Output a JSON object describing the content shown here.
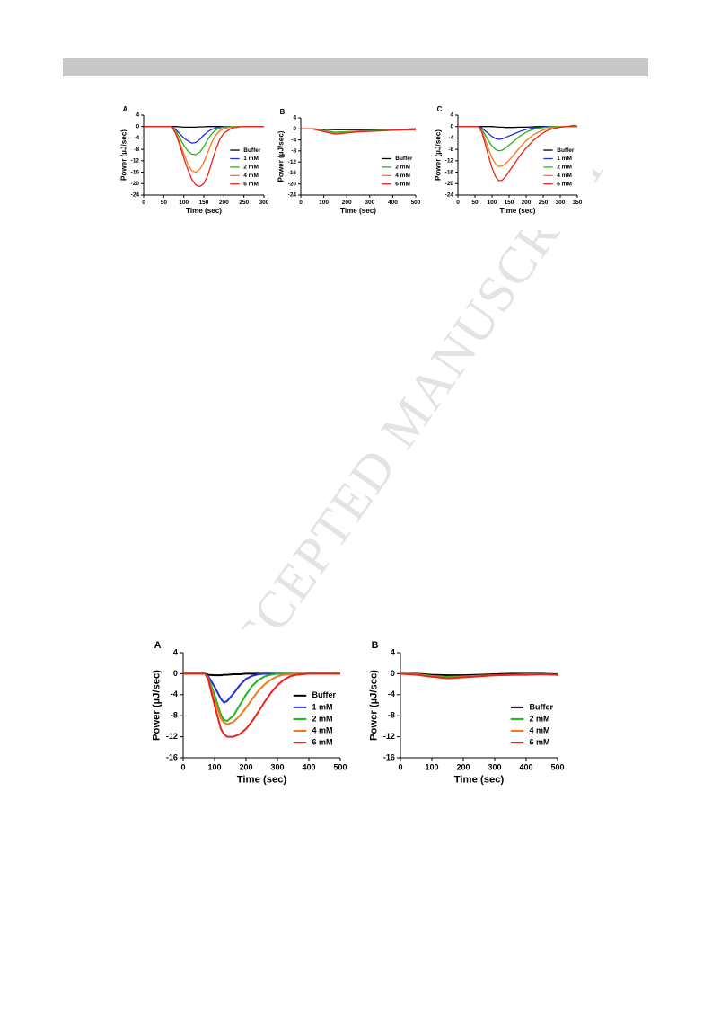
{
  "watermark": "ACCEPTED MANUSCRIPT",
  "chart_data": [
    {
      "type": "line",
      "panel": "A",
      "ylabel": "Power (µJ/sec)",
      "xlabel": "Time (sec)",
      "legend": "lower right",
      "xlim": [
        0,
        300
      ],
      "ylim": [
        -24,
        4
      ],
      "xticks": [
        0,
        50,
        100,
        150,
        200,
        250,
        300
      ],
      "yticks": [
        4,
        0,
        -4,
        -8,
        -12,
        -16,
        -20,
        -24
      ],
      "x": [
        0,
        60,
        70,
        80,
        90,
        100,
        110,
        120,
        130,
        140,
        150,
        160,
        170,
        180,
        190,
        200,
        220,
        240,
        260,
        280,
        300
      ],
      "series": [
        {
          "name": "Buffer",
          "color": "#000000",
          "values": [
            0,
            0,
            0,
            0,
            -0.1,
            -0.2,
            -0.2,
            -0.2,
            -0.2,
            -0.1,
            -0.1,
            0,
            0,
            0,
            0,
            0,
            0,
            0,
            0,
            0,
            0
          ]
        },
        {
          "name": "1 mM",
          "color": "#1f2fd6",
          "values": [
            0,
            0,
            0,
            -1,
            -2.5,
            -4,
            -5,
            -5.8,
            -5.6,
            -4.5,
            -3,
            -1.8,
            -1,
            -0.5,
            -0.2,
            0,
            0,
            0,
            0,
            0,
            0
          ]
        },
        {
          "name": "2 mM",
          "color": "#22b522",
          "values": [
            0,
            0,
            0,
            -1.5,
            -4,
            -6.5,
            -8.5,
            -9.7,
            -9.8,
            -9,
            -7,
            -4.5,
            -2.5,
            -1.2,
            -0.5,
            -0.2,
            0,
            0,
            0,
            0,
            0
          ]
        },
        {
          "name": "4 mM",
          "color": "#f27a1c",
          "values": [
            0,
            0,
            0,
            -2,
            -5.5,
            -9.5,
            -13,
            -15.5,
            -16,
            -15,
            -12.5,
            -9,
            -5.5,
            -3,
            -1.5,
            -0.7,
            -0.1,
            0,
            0,
            0,
            0
          ]
        },
        {
          "name": "6 mM",
          "color": "#e8231c",
          "values": [
            0,
            0,
            0,
            -2.5,
            -6.5,
            -11,
            -15,
            -18.5,
            -20.5,
            -21,
            -20,
            -17,
            -12.5,
            -8,
            -4.5,
            -2.3,
            -0.5,
            -0.1,
            0,
            0,
            0
          ]
        }
      ]
    },
    {
      "type": "line",
      "panel": "B",
      "ylabel": "Power (µJ/sec)",
      "xlabel": "Time (sec)",
      "legend": "lower right",
      "xlim": [
        0,
        500
      ],
      "ylim": [
        -24,
        4
      ],
      "xticks": [
        0,
        100,
        200,
        300,
        400,
        500
      ],
      "yticks": [
        4,
        0,
        -4,
        -8,
        -12,
        -16,
        -20,
        -24
      ],
      "x": [
        0,
        50,
        100,
        150,
        200,
        250,
        300,
        350,
        400,
        450,
        500
      ],
      "series": [
        {
          "name": "Buffer",
          "color": "#000000",
          "values": [
            0,
            0,
            -0.2,
            -0.3,
            -0.3,
            -0.3,
            -0.3,
            -0.2,
            -0.2,
            -0.1,
            0
          ]
        },
        {
          "name": "2 mM",
          "color": "#22b522",
          "values": [
            0,
            0,
            -0.6,
            -1.2,
            -1,
            -0.8,
            -0.6,
            -0.5,
            -0.4,
            -0.3,
            -0.2
          ]
        },
        {
          "name": "4 mM",
          "color": "#f27a1c",
          "values": [
            0,
            0,
            -0.8,
            -1.6,
            -1.3,
            -1,
            -0.8,
            -0.6,
            -0.5,
            -0.3,
            -0.2
          ]
        },
        {
          "name": "6 mM",
          "color": "#e8231c",
          "values": [
            0,
            0,
            -1,
            -1.9,
            -1.5,
            -1.1,
            -0.9,
            -0.7,
            -0.5,
            -0.4,
            -0.3
          ]
        }
      ]
    },
    {
      "type": "line",
      "panel": "C",
      "ylabel": "Power (µJ/sec)",
      "xlabel": "Time (sec)",
      "legend": "lower right",
      "xlim": [
        0,
        350
      ],
      "ylim": [
        -24,
        4
      ],
      "xticks": [
        0,
        50,
        100,
        150,
        200,
        250,
        300,
        350
      ],
      "yticks": [
        4,
        0,
        -4,
        -8,
        -12,
        -16,
        -20,
        -24
      ],
      "x": [
        0,
        50,
        60,
        70,
        80,
        90,
        100,
        110,
        120,
        130,
        140,
        160,
        180,
        200,
        220,
        240,
        260,
        280,
        300,
        320,
        340,
        350
      ],
      "series": [
        {
          "name": "Buffer",
          "color": "#000000",
          "values": [
            0,
            0,
            0,
            0,
            0,
            0,
            0,
            -0.1,
            -0.2,
            -0.2,
            -0.3,
            -0.3,
            -0.2,
            -0.2,
            -0.1,
            0,
            0,
            0,
            0,
            0,
            0,
            0
          ]
        },
        {
          "name": "1 mM",
          "color": "#1f2fd6",
          "values": [
            0,
            0,
            0,
            -0.5,
            -1.5,
            -2.5,
            -3.5,
            -4.2,
            -4.5,
            -4.3,
            -3.8,
            -2.8,
            -1.8,
            -1,
            -0.5,
            -0.2,
            0,
            0,
            0,
            0,
            0,
            0
          ]
        },
        {
          "name": "2 mM",
          "color": "#22b522",
          "values": [
            0,
            0,
            0,
            -1,
            -3,
            -5,
            -6.8,
            -8,
            -8.5,
            -8.3,
            -7.5,
            -5.5,
            -3.5,
            -2,
            -1,
            -0.5,
            -0.2,
            0,
            0,
            0,
            0,
            0
          ]
        },
        {
          "name": "4 mM",
          "color": "#f27a1c",
          "values": [
            0,
            0,
            0,
            -1.5,
            -4.5,
            -8,
            -11,
            -13,
            -14,
            -13.8,
            -13,
            -10.5,
            -7.5,
            -5,
            -3,
            -1.7,
            -0.8,
            -0.3,
            0,
            0,
            0.5,
            0.2
          ]
        },
        {
          "name": "6 mM",
          "color": "#e8231c",
          "values": [
            0,
            0,
            0,
            -2,
            -6,
            -10.5,
            -14.5,
            -17.5,
            -19,
            -18.8,
            -17.5,
            -14,
            -10.5,
            -7.5,
            -5,
            -3,
            -1.5,
            -0.7,
            -0.2,
            0,
            0.3,
            0
          ]
        }
      ]
    },
    {
      "type": "line",
      "panel": "A",
      "ylabel": "Power (µJ/sec)",
      "xlabel": "Time (sec)",
      "legend": "lower right",
      "xlim": [
        0,
        500
      ],
      "ylim": [
        -16,
        4
      ],
      "xticks": [
        0,
        100,
        200,
        300,
        400,
        500
      ],
      "yticks": [
        4,
        0,
        -4,
        -8,
        -12,
        -16
      ],
      "x": [
        0,
        50,
        70,
        80,
        100,
        120,
        130,
        140,
        160,
        180,
        200,
        220,
        240,
        260,
        280,
        300,
        320,
        340,
        360,
        400,
        450,
        500
      ],
      "series": [
        {
          "name": "Buffer",
          "color": "#000000",
          "values": [
            0,
            0,
            0,
            -0.2,
            -0.3,
            -0.3,
            -0.2,
            -0.2,
            -0.1,
            -0.1,
            0,
            0,
            0,
            0,
            0,
            0,
            0,
            0,
            0,
            0,
            0,
            0
          ]
        },
        {
          "name": "1 mM",
          "color": "#1f2fd6",
          "values": [
            0,
            0,
            0,
            -0.5,
            -2.5,
            -4.8,
            -5.5,
            -5.2,
            -3.8,
            -2.2,
            -1,
            -0.4,
            -0.1,
            0,
            0,
            0,
            0,
            0,
            0,
            0,
            0,
            0
          ]
        },
        {
          "name": "2 mM",
          "color": "#22b522",
          "values": [
            0,
            0,
            0,
            -0.8,
            -4,
            -7.8,
            -8.8,
            -9,
            -8,
            -6,
            -4,
            -2.3,
            -1.2,
            -0.5,
            -0.2,
            0,
            0,
            0,
            0,
            0,
            0,
            0
          ]
        },
        {
          "name": "4 mM",
          "color": "#f27a1c",
          "values": [
            0,
            0,
            0,
            -1,
            -5,
            -8.5,
            -9.3,
            -9.6,
            -9.2,
            -8,
            -6.5,
            -4.8,
            -3.2,
            -2,
            -1.1,
            -0.5,
            -0.2,
            -0.1,
            0,
            0,
            0,
            0
          ]
        },
        {
          "name": "6 mM",
          "color": "#e8231c",
          "values": [
            0,
            0,
            0,
            -1.2,
            -6,
            -10.5,
            -11.5,
            -12,
            -12,
            -11.5,
            -10.5,
            -9,
            -7.2,
            -5.3,
            -3.6,
            -2.2,
            -1.2,
            -0.5,
            -0.2,
            0,
            0,
            0
          ]
        }
      ]
    },
    {
      "type": "line",
      "panel": "B",
      "ylabel": "Power (µJ/sec)",
      "xlabel": "Time (sec)",
      "legend": "lower right",
      "xlim": [
        0,
        500
      ],
      "ylim": [
        -16,
        4
      ],
      "xticks": [
        0,
        100,
        200,
        300,
        400,
        500
      ],
      "yticks": [
        4,
        0,
        -4,
        -8,
        -12,
        -16
      ],
      "x": [
        0,
        50,
        100,
        150,
        200,
        250,
        300,
        350,
        400,
        450,
        500
      ],
      "series": [
        {
          "name": "Buffer",
          "color": "#000000",
          "values": [
            0,
            0,
            -0.2,
            -0.3,
            -0.3,
            -0.2,
            -0.1,
            0,
            0,
            0,
            -0.1
          ]
        },
        {
          "name": "2 mM",
          "color": "#22b522",
          "values": [
            0,
            -0.1,
            -0.4,
            -0.6,
            -0.5,
            -0.4,
            -0.3,
            -0.2,
            -0.1,
            -0.1,
            -0.2
          ]
        },
        {
          "name": "4 mM",
          "color": "#f27a1c",
          "values": [
            0,
            -0.1,
            -0.5,
            -0.8,
            -0.6,
            -0.4,
            -0.3,
            -0.2,
            -0.2,
            -0.1,
            -0.2
          ]
        },
        {
          "name": "6 mM",
          "color": "#e8231c",
          "values": [
            0,
            -0.2,
            -0.6,
            -0.9,
            -0.7,
            -0.5,
            -0.3,
            -0.2,
            -0.2,
            -0.1,
            -0.2
          ]
        }
      ]
    }
  ]
}
